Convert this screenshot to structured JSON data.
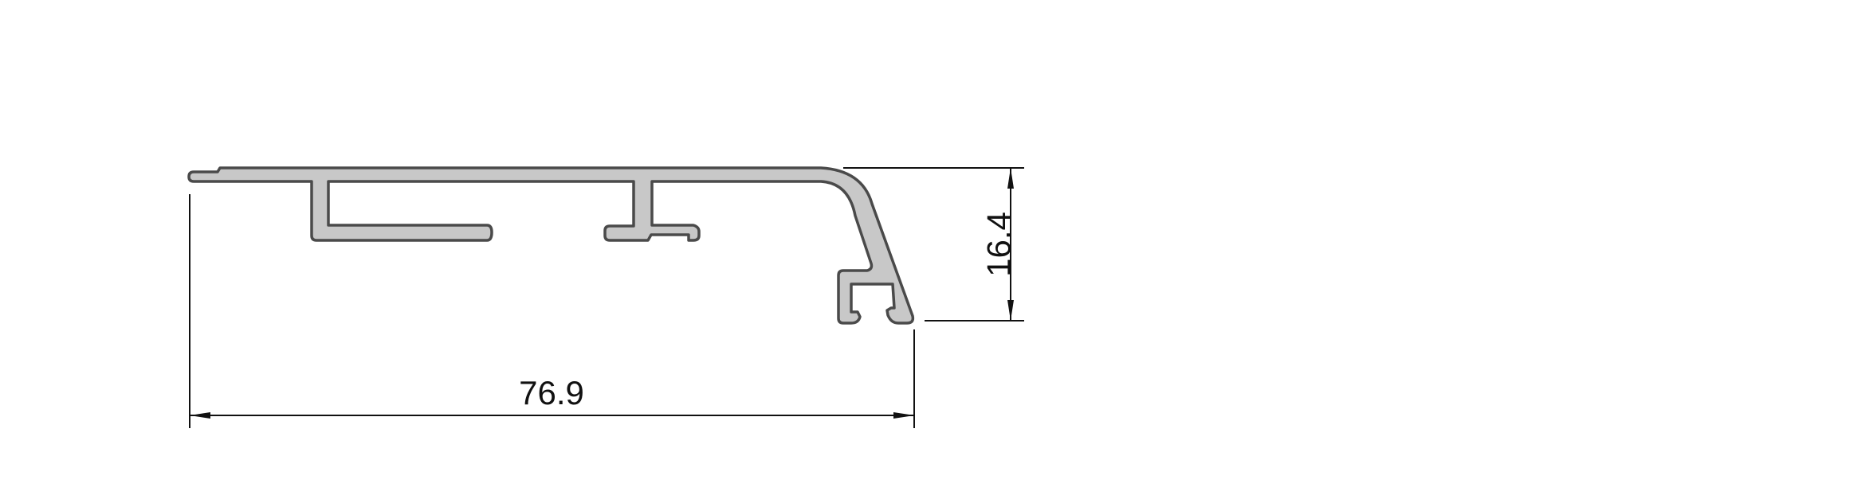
{
  "drawing": {
    "width_dimension": "76.9",
    "height_dimension": "16.4"
  },
  "colors": {
    "profile_fill": "#c8c8c8",
    "profile_stroke": "#4a4a4a",
    "dimension_line": "#111111",
    "background": "#ffffff"
  }
}
